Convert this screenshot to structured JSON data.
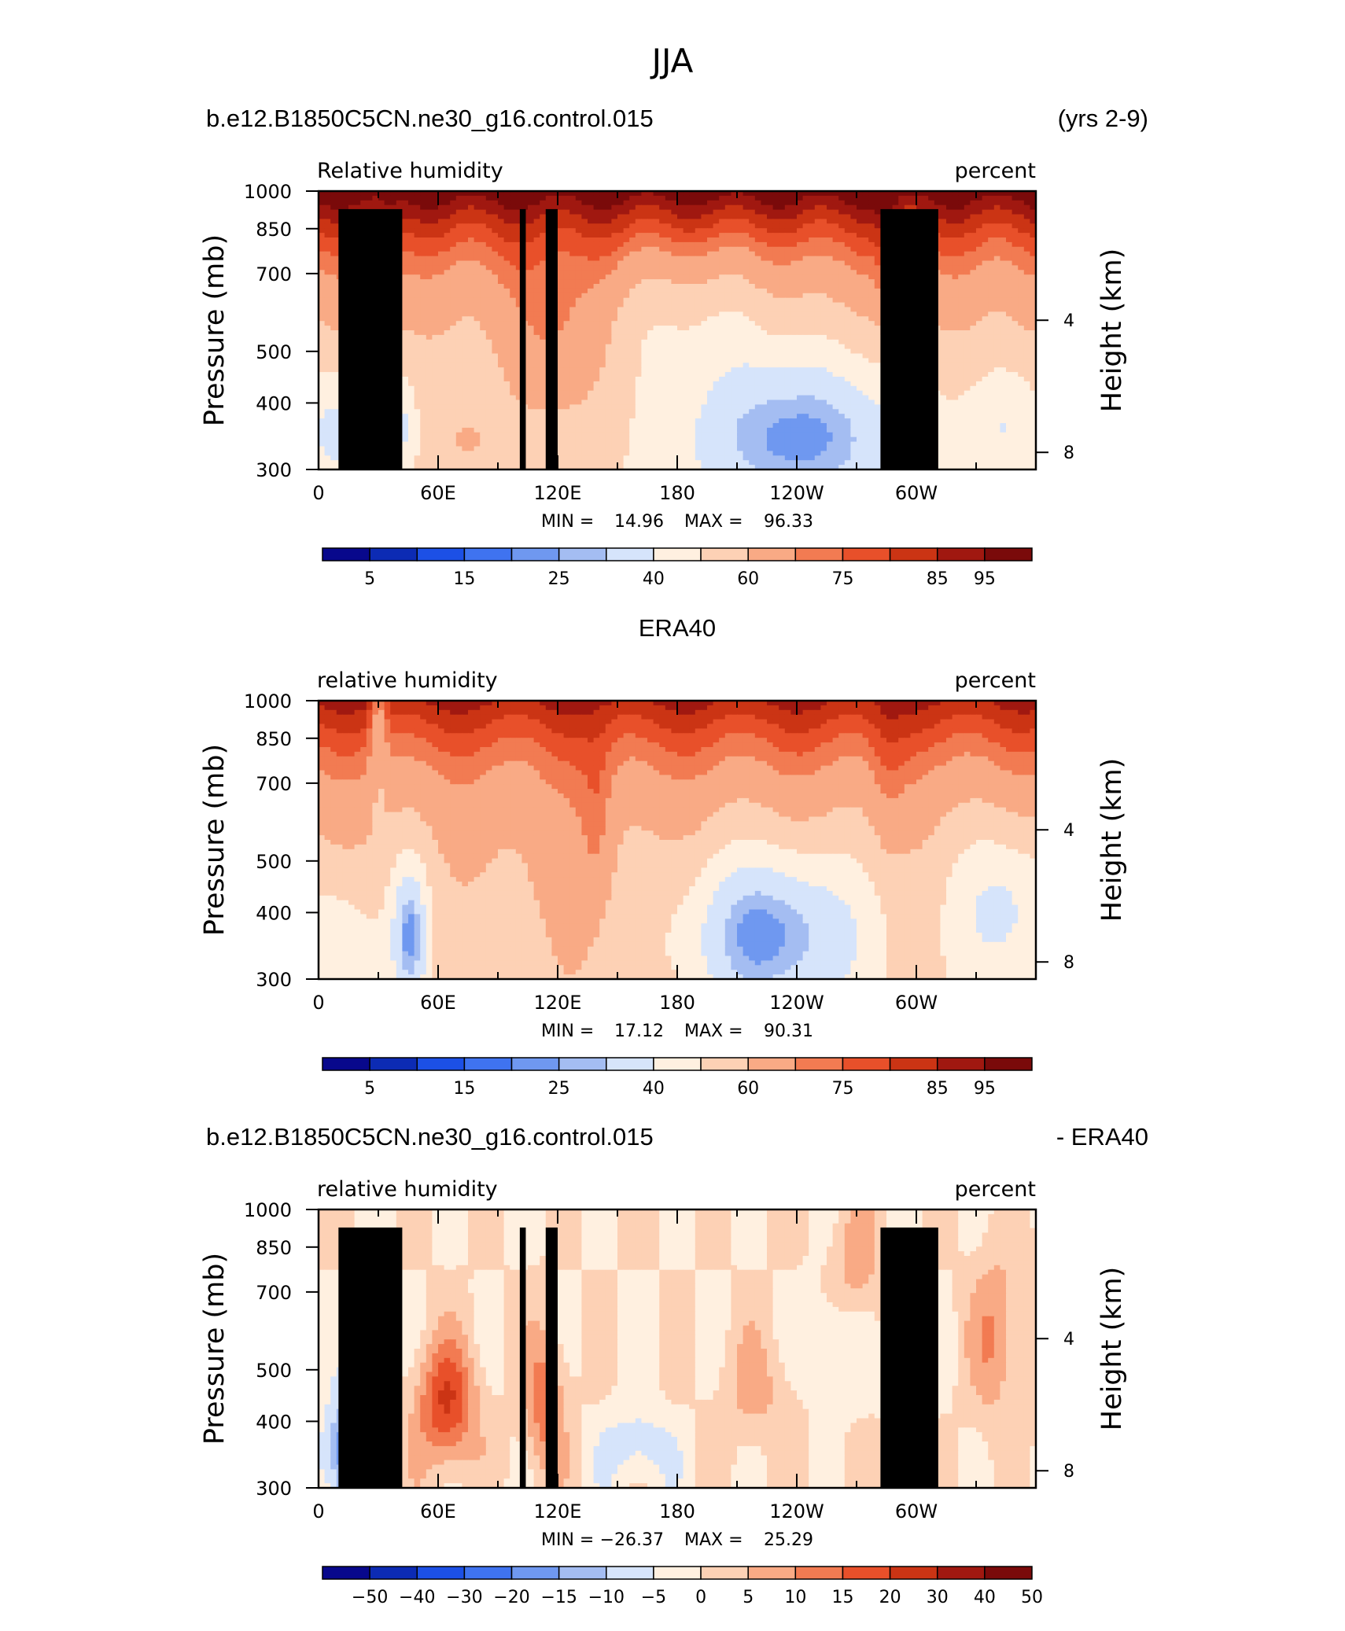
{
  "page_title": "JJA",
  "colormaps": {
    "rh": [
      "#08088c",
      "#0c2bb4",
      "#1c50e6",
      "#3f73f0",
      "#6f98f0",
      "#a4bdf2",
      "#d6e4fb",
      "#fff0e0",
      "#fdd1b5",
      "#f9aa85",
      "#f27b52",
      "#e8502a",
      "#cb3414",
      "#a01810",
      "#7a0a0a"
    ],
    "diff": [
      "#08088c",
      "#0c2bb4",
      "#1c50e6",
      "#3f73f0",
      "#6f98f0",
      "#a4bdf2",
      "#d6e4fb",
      "#fff0e0",
      "#fdd1b5",
      "#f9aa85",
      "#f27b52",
      "#e8502a",
      "#cb3414",
      "#a01810",
      "#7a0a0a"
    ]
  },
  "panels": [
    {
      "id": "model",
      "title_left": "b.e12.B1850C5CN.ne30_g16.control.015",
      "title_center": "",
      "title_right": "(yrs 2-9)",
      "subtitle_left": "Relative humidity",
      "subtitle_right": "percent",
      "ylabel": "Pressure (mb)",
      "ylabel_right": "Height (km)",
      "min_label": "MIN =",
      "min_value": "14.96",
      "max_label": "MAX =",
      "max_value": "96.33",
      "colormap": "rh",
      "colorbar_labels": [
        "5",
        "15",
        "25",
        "40",
        "60",
        "75",
        "85",
        "95"
      ],
      "field": "model",
      "topography": true
    },
    {
      "id": "obs",
      "title_left": "",
      "title_center": "ERA40",
      "title_right": "",
      "subtitle_left": "relative humidity",
      "subtitle_right": "percent",
      "ylabel": "Pressure (mb)",
      "ylabel_right": "Height (km)",
      "min_label": "MIN =",
      "min_value": "17.12",
      "max_label": "MAX =",
      "max_value": "90.31",
      "colormap": "rh",
      "colorbar_labels": [
        "5",
        "15",
        "25",
        "40",
        "60",
        "75",
        "85",
        "95"
      ],
      "field": "obs",
      "topography": false
    },
    {
      "id": "diff",
      "title_left": "b.e12.B1850C5CN.ne30_g16.control.015",
      "title_center": "",
      "title_right": "- ERA40",
      "subtitle_left": "relative humidity",
      "subtitle_right": "percent",
      "ylabel": "Pressure (mb)",
      "ylabel_right": "Height (km)",
      "min_label": "MIN =",
      "min_value": "−26.37",
      "max_label": "MAX =",
      "max_value": "25.29",
      "colormap": "diff",
      "colorbar_labels": [
        "−50",
        "−40",
        "−30",
        "−20",
        "−15",
        "−10",
        "−5",
        "0",
        "5",
        "10",
        "15",
        "20",
        "30",
        "40",
        "50"
      ],
      "field": "diff",
      "topography": true
    }
  ],
  "chart_data": [
    {
      "type": "heatmap",
      "title": "b.e12.B1850C5CN.ne30_g16.control.015 (yrs 2-9)",
      "variable": "Relative humidity",
      "units": "percent",
      "xlabel": "",
      "ylabel": "Pressure (mb)",
      "ylabel_right": "Height (km)",
      "x_ticks": [
        "0",
        "60E",
        "120E",
        "180",
        "120W",
        "60W"
      ],
      "y_ticks": [
        300,
        400,
        500,
        700,
        850,
        1000
      ],
      "y_ticks_right": [
        4,
        8
      ],
      "xlim": [
        0,
        360
      ],
      "ylim": [
        1000,
        300
      ],
      "yscale": "log",
      "contour_levels": [
        5,
        10,
        15,
        20,
        25,
        30,
        40,
        50,
        60,
        70,
        75,
        80,
        85,
        90,
        95
      ],
      "min": 14.96,
      "max": 96.33
    },
    {
      "type": "heatmap",
      "title": "ERA40",
      "variable": "relative humidity",
      "units": "percent",
      "xlabel": "",
      "ylabel": "Pressure (mb)",
      "ylabel_right": "Height (km)",
      "x_ticks": [
        "0",
        "60E",
        "120E",
        "180",
        "120W",
        "60W"
      ],
      "y_ticks": [
        300,
        400,
        500,
        700,
        850,
        1000
      ],
      "y_ticks_right": [
        4,
        8
      ],
      "xlim": [
        0,
        360
      ],
      "ylim": [
        1000,
        300
      ],
      "yscale": "log",
      "contour_levels": [
        5,
        10,
        15,
        20,
        25,
        30,
        40,
        50,
        60,
        70,
        75,
        80,
        85,
        90,
        95
      ],
      "min": 17.12,
      "max": 90.31
    },
    {
      "type": "heatmap",
      "title": "b.e12.B1850C5CN.ne30_g16.control.015 - ERA40",
      "variable": "relative humidity",
      "units": "percent",
      "xlabel": "",
      "ylabel": "Pressure (mb)",
      "ylabel_right": "Height (km)",
      "x_ticks": [
        "0",
        "60E",
        "120E",
        "180",
        "120W",
        "60W"
      ],
      "y_ticks": [
        300,
        400,
        500,
        700,
        850,
        1000
      ],
      "y_ticks_right": [
        4,
        8
      ],
      "xlim": [
        0,
        360
      ],
      "ylim": [
        1000,
        300
      ],
      "yscale": "log",
      "contour_levels": [
        -50,
        -40,
        -30,
        -20,
        -15,
        -10,
        -5,
        0,
        5,
        10,
        15,
        20,
        30,
        40,
        50
      ],
      "min": -26.37,
      "max": 25.29
    }
  ]
}
